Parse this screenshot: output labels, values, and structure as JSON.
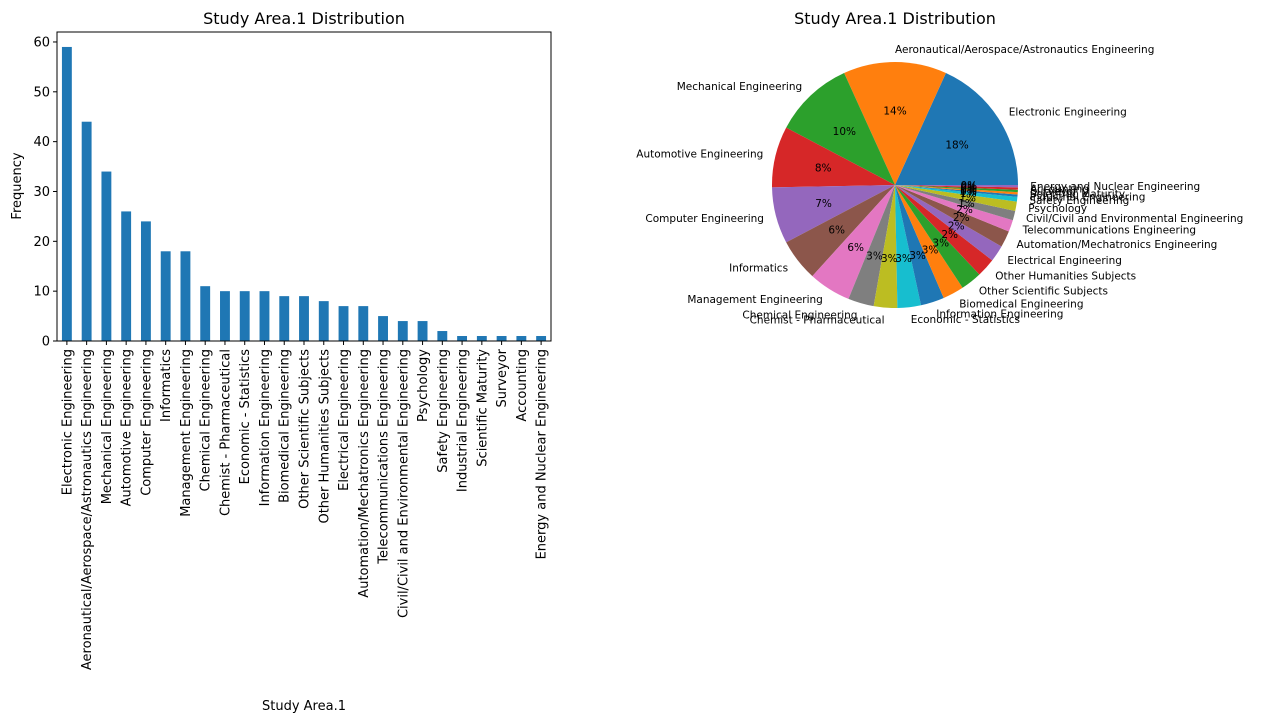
{
  "chart_data": [
    {
      "type": "bar",
      "title": "Study Area.1 Distribution",
      "xlabel": "Study Area.1",
      "ylabel": "Frequency",
      "ylim": [
        0,
        62
      ],
      "yticks": [
        0,
        10,
        20,
        30,
        40,
        50,
        60
      ],
      "color": "#1f77b4",
      "categories": [
        "Electronic Engineering",
        "Aeronautical/Aerospace/Astronautics Engineering",
        "Mechanical Engineering",
        "Automotive Engineering",
        "Computer Engineering",
        "Informatics",
        "Management Engineering",
        "Chemical Engineering",
        "Chemist - Pharmaceutical",
        "Economic - Statistics",
        "Information Engineering",
        "Biomedical Engineering",
        "Other Scientific Subjects",
        "Other Humanities Subjects",
        "Electrical Engineering",
        "Automation/Mechatronics Engineering",
        "Telecommunications Engineering",
        "Civil/Civil and Environmental Engineering",
        "Psychology",
        "Safety Engineering",
        "Industrial Engineering",
        "Scientific Maturity",
        "Surveyor",
        "Accounting",
        "Energy and Nuclear Engineering"
      ],
      "values": [
        59,
        44,
        34,
        26,
        24,
        18,
        18,
        11,
        10,
        10,
        10,
        9,
        9,
        8,
        7,
        7,
        5,
        4,
        4,
        2,
        1,
        1,
        1,
        1,
        1
      ]
    },
    {
      "type": "pie",
      "title": "Study Area.1 Distribution",
      "labels": [
        "Electronic Engineering",
        "Aeronautical/Aerospace/Astronautics Engineering",
        "Mechanical Engineering",
        "Automotive Engineering",
        "Computer Engineering",
        "Informatics",
        "Management Engineering",
        "Chemical Engineering",
        "Chemist - Pharmaceutical",
        "Economic - Statistics",
        "Information Engineering",
        "Biomedical Engineering",
        "Other Scientific Subjects",
        "Other Humanities Subjects",
        "Electrical Engineering",
        "Automation/Mechatronics Engineering",
        "Telecommunications Engineering",
        "Civil/Civil and Environmental Engineering",
        "Psychology",
        "Safety Engineering",
        "Industrial Engineering",
        "Scientific Maturity",
        "Surveyor",
        "Accounting",
        "Energy and Nuclear Engineering"
      ],
      "values": [
        59,
        44,
        34,
        26,
        24,
        18,
        18,
        11,
        10,
        10,
        10,
        9,
        9,
        8,
        7,
        7,
        5,
        4,
        4,
        2,
        1,
        1,
        1,
        1,
        1
      ],
      "percent_labels": [
        "18%",
        "14%",
        "10%",
        "8%",
        "7%",
        "6%",
        "6%",
        "3%",
        "3%",
        "3%",
        "3%",
        "3%",
        "3%",
        "2%",
        "2%",
        "2%",
        "2%",
        "1%",
        "1%",
        "1%",
        "0%",
        "0%",
        "0%",
        "0%",
        "0%"
      ],
      "colors": [
        "#1f77b4",
        "#ff7f0e",
        "#2ca02c",
        "#d62728",
        "#9467bd",
        "#8c564b",
        "#e377c2",
        "#7f7f7f",
        "#bcbd22",
        "#17becf"
      ]
    }
  ]
}
